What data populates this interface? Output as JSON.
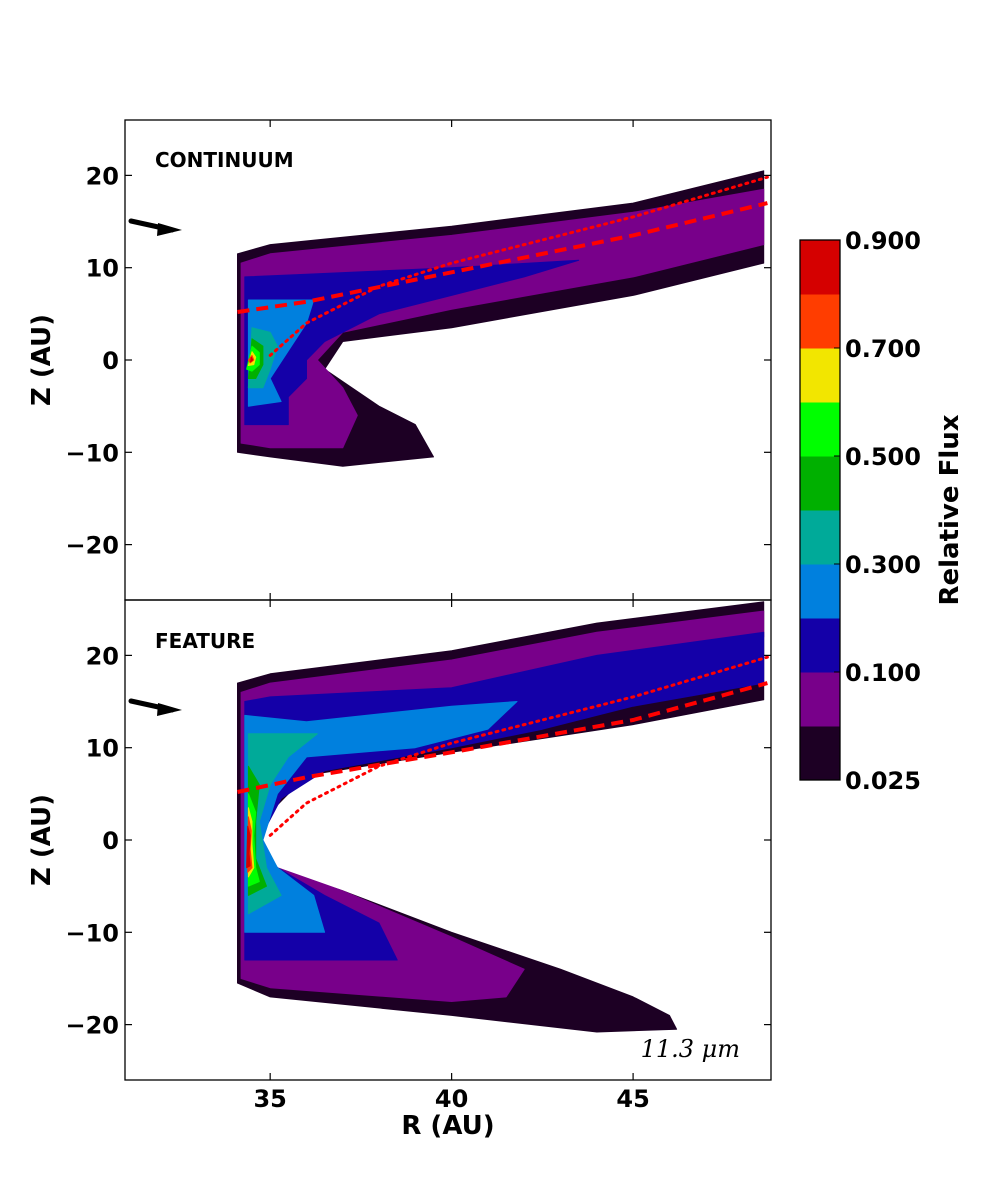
{
  "chart_data": {
    "type": "contour",
    "x_axis": {
      "label": "R (AU)",
      "range": [
        31,
        48.8
      ],
      "ticks": [
        35,
        40,
        45
      ]
    },
    "y_axis": {
      "label": "Z (AU)",
      "range": [
        -26,
        26
      ],
      "ticks": [
        20,
        10,
        0,
        -10,
        -20
      ]
    },
    "panels": [
      {
        "label": "CONTINUUM",
        "levels": [
          {
            "level": 0.025,
            "outline": [
              [
                34.1,
                11.5
              ],
              [
                35,
                12.5
              ],
              [
                40,
                14.5
              ],
              [
                45,
                17
              ],
              [
                48.6,
                20.5
              ],
              [
                48.6,
                10.5
              ],
              [
                45,
                7
              ],
              [
                40,
                3.5
              ],
              [
                37,
                2
              ],
              [
                36.5,
                -1
              ],
              [
                38,
                -5
              ],
              [
                39,
                -7
              ],
              [
                39.5,
                -10.5
              ],
              [
                37,
                -11.5
              ],
              [
                35,
                -10.5
              ],
              [
                34.1,
                -10
              ]
            ]
          },
          {
            "level": 0.05,
            "outline": [
              [
                34.2,
                10.5
              ],
              [
                35,
                11.5
              ],
              [
                40,
                13.5
              ],
              [
                45,
                16
              ],
              [
                48.6,
                18.5
              ],
              [
                48.6,
                12.5
              ],
              [
                45,
                9
              ],
              [
                40,
                5.5
              ],
              [
                37,
                3
              ],
              [
                36.3,
                0
              ],
              [
                37,
                -3
              ],
              [
                37.4,
                -6
              ],
              [
                37,
                -9.5
              ],
              [
                35,
                -9.5
              ],
              [
                34.2,
                -9
              ]
            ]
          },
          {
            "level": 0.1,
            "outline": [
              [
                34.3,
                9
              ],
              [
                36,
                9.3
              ],
              [
                40,
                10
              ],
              [
                43.5,
                10.8
              ],
              [
                42,
                9
              ],
              [
                40,
                7
              ],
              [
                38,
                5
              ],
              [
                36.5,
                2
              ],
              [
                36,
                0
              ],
              [
                36,
                -2
              ],
              [
                35.5,
                -4
              ],
              [
                35.5,
                -7
              ],
              [
                34.3,
                -7
              ]
            ]
          },
          {
            "level": 0.2,
            "outline": [
              [
                34.4,
                6.5
              ],
              [
                36.2,
                6.5
              ],
              [
                36,
                4
              ],
              [
                35.5,
                1
              ],
              [
                35,
                -2
              ],
              [
                35.3,
                -4.5
              ],
              [
                34.4,
                -5
              ]
            ]
          },
          {
            "level": 0.3,
            "outline": [
              [
                34.5,
                3.5
              ],
              [
                35,
                3
              ],
              [
                35.2,
                1.5
              ],
              [
                35,
                -1
              ],
              [
                34.8,
                -3
              ],
              [
                34.4,
                -3
              ]
            ]
          },
          {
            "level": 0.4,
            "outline": [
              [
                34.5,
                2.3
              ],
              [
                34.8,
                1.5
              ],
              [
                34.8,
                -0.5
              ],
              [
                34.6,
                -2
              ],
              [
                34.4,
                -2
              ]
            ]
          },
          {
            "level": 0.5,
            "outline": [
              [
                34.5,
                1.5
              ],
              [
                34.7,
                0.8
              ],
              [
                34.7,
                -0.5
              ],
              [
                34.5,
                -1.2
              ],
              [
                34.35,
                -1
              ]
            ]
          },
          {
            "level": 0.6,
            "outline": [
              [
                34.5,
                0.9
              ],
              [
                34.6,
                0.3
              ],
              [
                34.55,
                -0.5
              ],
              [
                34.4,
                -0.6
              ]
            ]
          },
          {
            "level": 0.7,
            "outline": [
              [
                34.5,
                0.5
              ],
              [
                34.55,
                0
              ],
              [
                34.45,
                -0.3
              ],
              [
                34.4,
                0
              ]
            ]
          },
          {
            "level": 0.8,
            "outline": [
              [
                34.48,
                0.3
              ],
              [
                34.52,
                0
              ],
              [
                34.46,
                -0.2
              ]
            ]
          }
        ],
        "tau1_dashed": [
          [
            34.1,
            5.2
          ],
          [
            36,
            6.3
          ],
          [
            40,
            9.5
          ],
          [
            45,
            13.5
          ],
          [
            48.7,
            17
          ]
        ],
        "tau1_dotted": [
          [
            35,
            0.5
          ],
          [
            36,
            4
          ],
          [
            38,
            8
          ],
          [
            40,
            10.5
          ],
          [
            45,
            15.5
          ],
          [
            48.7,
            19.8
          ]
        ]
      },
      {
        "label": "FEATURE",
        "levels": [
          {
            "level": 0.025,
            "outline": [
              [
                34.1,
                17
              ],
              [
                35,
                18
              ],
              [
                40,
                20.5
              ],
              [
                44,
                23.5
              ],
              [
                48.6,
                25.8
              ],
              [
                48.6,
                15.2
              ],
              [
                45,
                12.5
              ],
              [
                40,
                9.5
              ],
              [
                36,
                7
              ],
              [
                35,
                3
              ],
              [
                34.5,
                0
              ],
              [
                35,
                -3
              ],
              [
                37,
                -5.5
              ],
              [
                40,
                -10
              ],
              [
                43,
                -14
              ],
              [
                45,
                -17
              ],
              [
                46,
                -19
              ],
              [
                46.2,
                -20.5
              ],
              [
                44,
                -20.8
              ],
              [
                40,
                -19
              ],
              [
                35,
                -17
              ],
              [
                34.1,
                -15.5
              ]
            ]
          },
          {
            "level": 0.05,
            "outline": [
              [
                34.2,
                16
              ],
              [
                35,
                17
              ],
              [
                40,
                19.5
              ],
              [
                44,
                22.5
              ],
              [
                48.6,
                24.8
              ],
              [
                48.6,
                22
              ],
              [
                45,
                19
              ],
              [
                43.5,
                16.5
              ],
              [
                40,
                11.5
              ],
              [
                36,
                8
              ],
              [
                35.2,
                4
              ],
              [
                34.6,
                0
              ],
              [
                35.2,
                -3
              ],
              [
                37,
                -5.5
              ],
              [
                40,
                -10.5
              ],
              [
                42,
                -14
              ],
              [
                41.5,
                -17
              ],
              [
                40,
                -17.5
              ],
              [
                35,
                -16
              ],
              [
                34.2,
                -15
              ]
            ]
          },
          {
            "level": 0.1,
            "outline": [
              [
                34.3,
                15
              ],
              [
                35,
                15.5
              ],
              [
                40,
                16.5
              ],
              [
                44,
                20
              ],
              [
                48.6,
                22.5
              ],
              [
                48.6,
                17
              ],
              [
                45,
                14.5
              ],
              [
                42.5,
                12
              ],
              [
                40,
                10
              ],
              [
                36.5,
                7.5
              ],
              [
                35.3,
                4.5
              ],
              [
                34.7,
                0
              ],
              [
                35.2,
                -3
              ],
              [
                36.5,
                -6
              ],
              [
                38,
                -9
              ],
              [
                38.5,
                -13
              ],
              [
                35,
                -13
              ],
              [
                34.3,
                -13
              ]
            ]
          },
          {
            "level": 0.2,
            "outline": [
              [
                34.3,
                13.5
              ],
              [
                36,
                12.8
              ],
              [
                40,
                14.5
              ],
              [
                41.8,
                15
              ],
              [
                41,
                12
              ],
              [
                39,
                10
              ],
              [
                36,
                9
              ],
              [
                35.2,
                5
              ],
              [
                34.8,
                0
              ],
              [
                35.2,
                -3
              ],
              [
                36.2,
                -6
              ],
              [
                36.5,
                -10
              ],
              [
                34.3,
                -10
              ]
            ]
          },
          {
            "level": 0.3,
            "outline": [
              [
                34.4,
                11.5
              ],
              [
                36.3,
                11.5
              ],
              [
                35.5,
                9
              ],
              [
                35,
                6
              ],
              [
                34.7,
                2
              ],
              [
                34.9,
                -3
              ],
              [
                35.3,
                -6
              ],
              [
                34.4,
                -8
              ]
            ]
          },
          {
            "level": 0.4,
            "outline": [
              [
                34.4,
                8
              ],
              [
                34.7,
                6
              ],
              [
                34.6,
                2
              ],
              [
                34.6,
                -2
              ],
              [
                34.9,
                -5
              ],
              [
                34.4,
                -6
              ]
            ]
          },
          {
            "level": 0.5,
            "outline": [
              [
                34.4,
                5
              ],
              [
                34.6,
                3
              ],
              [
                34.55,
                0.5
              ],
              [
                34.6,
                -3
              ],
              [
                34.7,
                -4.5
              ],
              [
                34.4,
                -5
              ]
            ]
          },
          {
            "level": 0.6,
            "outline": [
              [
                34.4,
                3.5
              ],
              [
                34.5,
                2
              ],
              [
                34.5,
                -0.5
              ],
              [
                34.55,
                -3
              ],
              [
                34.4,
                -4
              ]
            ]
          },
          {
            "level": 0.7,
            "outline": [
              [
                34.4,
                2.5
              ],
              [
                34.48,
                1
              ],
              [
                34.45,
                -1
              ],
              [
                34.5,
                -3
              ],
              [
                34.38,
                -3.5
              ]
            ]
          },
          {
            "level": 0.8,
            "outline": [
              [
                34.38,
                1.5
              ],
              [
                34.45,
                0.5
              ],
              [
                34.42,
                -1.5
              ],
              [
                34.45,
                -2.8
              ],
              [
                34.35,
                -3
              ]
            ]
          }
        ],
        "tau1_dashed": [
          [
            34.1,
            5.2
          ],
          [
            36,
            6.8
          ],
          [
            40,
            9.5
          ],
          [
            45,
            13
          ],
          [
            48.7,
            17
          ]
        ],
        "tau1_dotted": [
          [
            35,
            0.5
          ],
          [
            36,
            4
          ],
          [
            38,
            8
          ],
          [
            40,
            10.5
          ],
          [
            45,
            15.5
          ],
          [
            48.7,
            19.8
          ]
        ],
        "annotation": "11.3 μm"
      }
    ],
    "colorbar": {
      "label": "Relative Flux",
      "tick_labels": [
        "0.900",
        "0.700",
        "0.500",
        "0.300",
        "0.100",
        "0.025"
      ],
      "levels": [
        0.025,
        0.05,
        0.1,
        0.2,
        0.3,
        0.4,
        0.5,
        0.6,
        0.7,
        0.8,
        0.9
      ],
      "colors": [
        "#1d0024",
        "#78008a",
        "#1400a8",
        "#0080de",
        "#00aa99",
        "#00b000",
        "#00ff00",
        "#f2e600",
        "#ff3d00",
        "#d50000"
      ]
    },
    "line_colors": {
      "tau1": "#ff0000",
      "arrow": "#000000"
    }
  }
}
